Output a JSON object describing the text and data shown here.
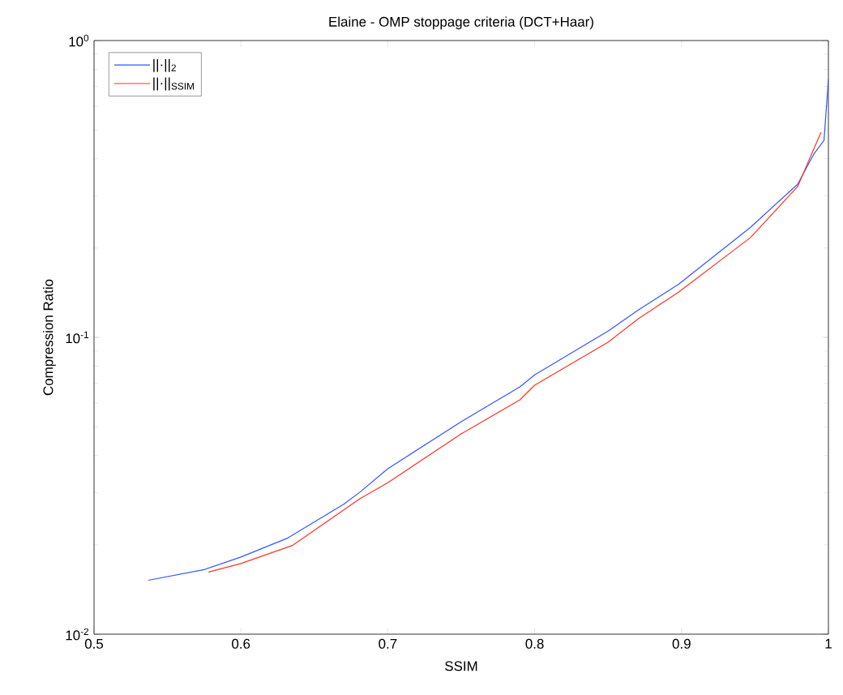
{
  "chart_data": {
    "type": "line",
    "title": "Elaine - OMP stoppage criteria (DCT+Haar)",
    "xlabel": "SSIM",
    "ylabel": "Compression Ratio",
    "log": "y",
    "marker": "none",
    "legend": "top left",
    "xlim": [
      0.5,
      1
    ],
    "ylim": [
      0.01,
      1
    ],
    "xticks": [
      0.5,
      0.6,
      0.7,
      0.8,
      0.9,
      1
    ],
    "yticks": [
      {
        "value": 0.01,
        "label": "10$^{-2}$"
      },
      {
        "value": 0.1,
        "label": "10$^{-1}$"
      },
      {
        "value": 1,
        "label": "10$^{0}$"
      }
    ],
    "series": [
      {
        "name": "||·||$_{2}$",
        "color": "#3355ff",
        "x": [
          0.537,
          0.575,
          0.6,
          0.632,
          0.67,
          0.681,
          0.7,
          0.75,
          0.79,
          0.8,
          0.85,
          0.871,
          0.898,
          0.947,
          0.979,
          0.99,
          0.997,
          1.0
        ],
        "values": [
          0.0152,
          0.0165,
          0.0182,
          0.0211,
          0.0274,
          0.0301,
          0.0361,
          0.052,
          0.0681,
          0.0748,
          0.105,
          0.124,
          0.151,
          0.235,
          0.328,
          0.414,
          0.461,
          0.74
        ]
      },
      {
        "name": "||·||$_{SSIM}$",
        "color": "#ff3322",
        "x": [
          0.578,
          0.6,
          0.635,
          0.681,
          0.7,
          0.75,
          0.79,
          0.8,
          0.85,
          0.871,
          0.898,
          0.947,
          0.979,
          0.995
        ],
        "values": [
          0.0162,
          0.0173,
          0.0199,
          0.0286,
          0.0324,
          0.0473,
          0.0616,
          0.069,
          0.0963,
          0.116,
          0.142,
          0.217,
          0.322,
          0.491
        ]
      }
    ]
  }
}
